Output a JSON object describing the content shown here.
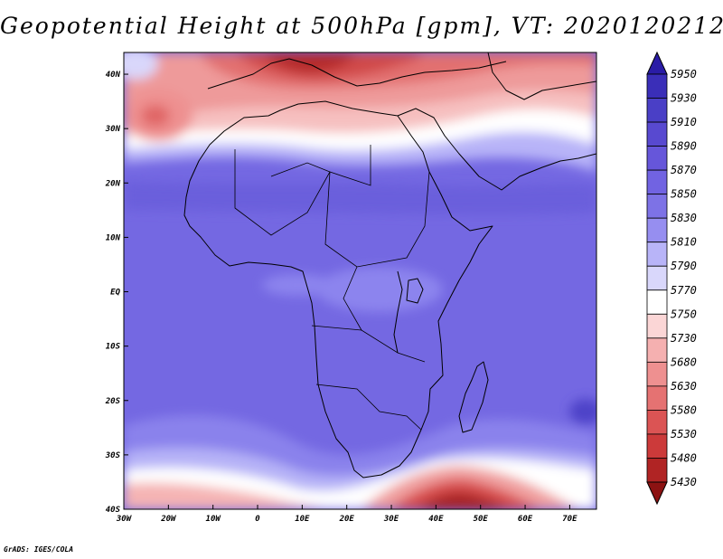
{
  "title": "Geopotential Height at 500hPa [gpm], VT: 2020120212",
  "credit": "GrADS: IGES/COLA",
  "map": {
    "lon_range": [
      -30,
      76
    ],
    "lat_range": [
      -40,
      44
    ],
    "lat_ticks": [
      {
        "value": 40,
        "label": "40N"
      },
      {
        "value": 30,
        "label": "30N"
      },
      {
        "value": 20,
        "label": "20N"
      },
      {
        "value": 10,
        "label": "10N"
      },
      {
        "value": 0,
        "label": "EQ"
      },
      {
        "value": -10,
        "label": "10S"
      },
      {
        "value": -20,
        "label": "20S"
      },
      {
        "value": -30,
        "label": "30S"
      },
      {
        "value": -40,
        "label": "40S"
      }
    ],
    "lon_ticks": [
      {
        "value": -30,
        "label": "30W"
      },
      {
        "value": -20,
        "label": "20W"
      },
      {
        "value": -10,
        "label": "10W"
      },
      {
        "value": 0,
        "label": "0"
      },
      {
        "value": 10,
        "label": "10E"
      },
      {
        "value": 20,
        "label": "20E"
      },
      {
        "value": 30,
        "label": "30E"
      },
      {
        "value": 40,
        "label": "40E"
      },
      {
        "value": 50,
        "label": "50E"
      },
      {
        "value": 60,
        "label": "60E"
      },
      {
        "value": 70,
        "label": "70E"
      }
    ]
  },
  "colorbar": {
    "levels": [
      "5950",
      "5930",
      "5910",
      "5890",
      "5870",
      "5850",
      "5830",
      "5810",
      "5790",
      "5770",
      "5750",
      "5730",
      "5680",
      "5630",
      "5580",
      "5530",
      "5480",
      "5430"
    ],
    "colors": [
      "#2a1ca6",
      "#3a2eb8",
      "#4a3fc6",
      "#5849d0",
      "#6656da",
      "#7163e2",
      "#7d72e6",
      "#968ef0",
      "#b8b4f8",
      "#d9d7fb",
      "#ffffff",
      "#fbd6d6",
      "#f5b0b0",
      "#ee9090",
      "#e57272",
      "#db5454",
      "#cc3a3a",
      "#b02424",
      "#8c1212"
    ]
  }
}
